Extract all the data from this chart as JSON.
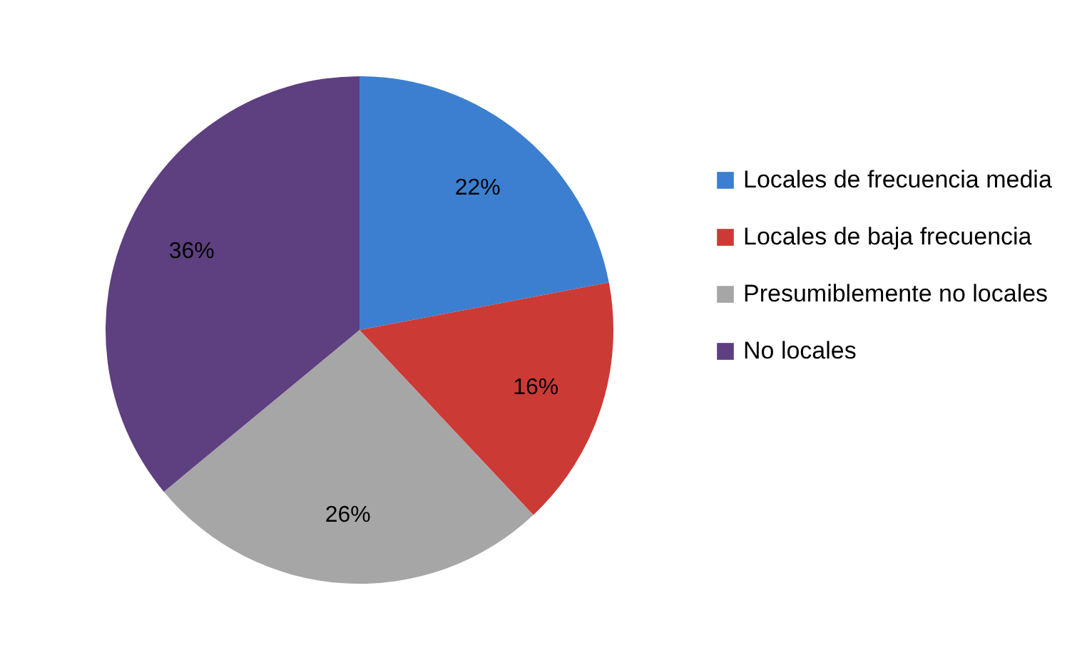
{
  "chart_data": {
    "type": "pie",
    "categories": [
      "Locales de frecuencia media",
      "Locales de baja frecuencia",
      "Presumiblemente no locales",
      "No locales"
    ],
    "values": [
      22,
      16,
      26,
      36
    ],
    "colors": [
      "#3c7fd0",
      "#cc3a36",
      "#a6a6a6",
      "#5e3f80"
    ],
    "value_labels": [
      "22%",
      "16%",
      "26%",
      "36%"
    ],
    "legend": "right"
  }
}
